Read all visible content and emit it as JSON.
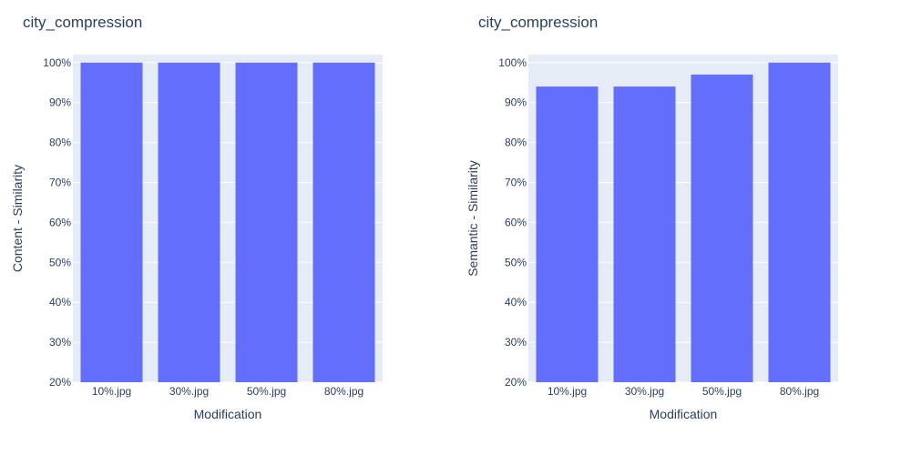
{
  "colors": {
    "bar": "#636efa",
    "plot_bg": "#e5ecf6",
    "grid": "#ffffff",
    "text": "#2a3f5f"
  },
  "chart_data": [
    {
      "type": "bar",
      "title": "city_compression",
      "xlabel": "Modification",
      "ylabel": "Content - Similarity",
      "categories": [
        "10%.jpg",
        "30%.jpg",
        "50%.jpg",
        "80%.jpg"
      ],
      "values": [
        100,
        100,
        100,
        100
      ],
      "ylim": [
        20,
        102
      ],
      "yticks": [
        "20%",
        "30%",
        "40%",
        "50%",
        "60%",
        "70%",
        "80%",
        "90%",
        "100%"
      ],
      "ytick_values": [
        20,
        30,
        40,
        50,
        60,
        70,
        80,
        90,
        100
      ],
      "grid": true
    },
    {
      "type": "bar",
      "title": "city_compression",
      "xlabel": "Modification",
      "ylabel": "Semantic - Similarity",
      "categories": [
        "10%.jpg",
        "30%.jpg",
        "50%.jpg",
        "80%.jpg"
      ],
      "values": [
        94,
        94,
        97,
        100
      ],
      "ylim": [
        20,
        102
      ],
      "yticks": [
        "20%",
        "30%",
        "40%",
        "50%",
        "60%",
        "70%",
        "80%",
        "90%",
        "100%"
      ],
      "ytick_values": [
        20,
        30,
        40,
        50,
        60,
        70,
        80,
        90,
        100
      ],
      "grid": true
    }
  ]
}
